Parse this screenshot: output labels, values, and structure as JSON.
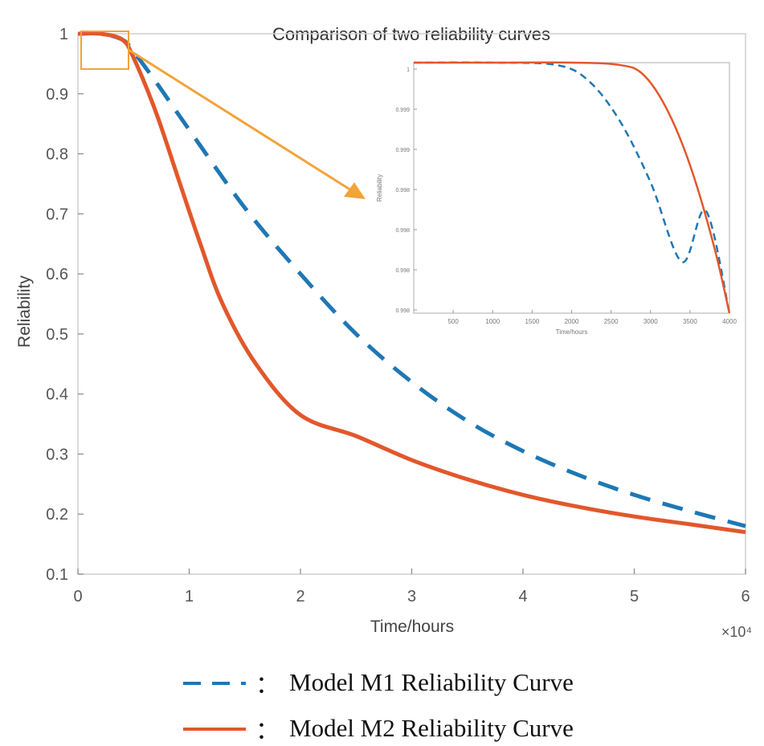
{
  "chart_data": [
    {
      "type": "line",
      "title": "Comparison of two reliability curves",
      "xlabel": "Time/hours",
      "ylabel": "Reliability",
      "xlim": [
        0,
        6
      ],
      "ylim": [
        0.1,
        1.0
      ],
      "x_multiplier": "×10⁴",
      "x_ticks": [
        "0",
        "1",
        "2",
        "3",
        "4",
        "5",
        "6"
      ],
      "y_ticks": [
        "0.1",
        "0.2",
        "0.3",
        "0.4",
        "0.5",
        "0.6",
        "0.7",
        "0.8",
        "0.9",
        "1"
      ],
      "grid": false,
      "series": [
        {
          "name": "Model M1 Reliability Curve",
          "style": "dashed",
          "color": "#1f77b4",
          "x": [
            0,
            0.2,
            0.4,
            0.5,
            0.7,
            1.0,
            1.5,
            2.0,
            2.5,
            3.0,
            3.5,
            4.0,
            4.5,
            5.0,
            5.5,
            6.0
          ],
          "y": [
            1.0,
            1.0,
            0.99,
            0.97,
            0.92,
            0.84,
            0.71,
            0.6,
            0.5,
            0.42,
            0.355,
            0.305,
            0.265,
            0.232,
            0.205,
            0.18
          ]
        },
        {
          "name": "Model M2 Reliability Curve",
          "style": "solid",
          "color": "#e2572b",
          "x": [
            0,
            0.2,
            0.4,
            0.5,
            0.7,
            0.9,
            1.1,
            1.3,
            1.6,
            2.0,
            2.5,
            3.0,
            3.5,
            4.0,
            4.5,
            5.0,
            5.5,
            6.0
          ],
          "y": [
            1.0,
            1.0,
            0.99,
            0.96,
            0.87,
            0.76,
            0.65,
            0.55,
            0.45,
            0.365,
            0.33,
            0.29,
            0.258,
            0.232,
            0.212,
            0.196,
            0.183,
            0.17
          ]
        }
      ]
    },
    {
      "type": "line",
      "xlabel": "Time/hours",
      "ylabel": "Reliability",
      "xlim": [
        0,
        4000
      ],
      "ylim": [
        0.9978,
        1.0
      ],
      "x_ticks": [
        "500",
        "1000",
        "1500",
        "2000",
        "2500",
        "3000",
        "3500",
        "4000"
      ],
      "y_ticks": [
        "1",
        "0.999",
        "0.999",
        "0.998",
        "0.998",
        "0.998",
        "0.998"
      ],
      "series": [
        {
          "style": "dashed",
          "color": "#1f77b4",
          "x": [
            0,
            1000,
            1800,
            2200,
            2600,
            3000,
            3400,
            3700,
            4000
          ],
          "y": [
            1.0,
            1.0,
            0.99998,
            0.99985,
            0.9995,
            0.99895,
            0.99825,
            0.9987,
            0.9978
          ]
        },
        {
          "style": "solid",
          "color": "#e2572b",
          "x": [
            0,
            1000,
            2000,
            2600,
            2900,
            3200,
            3500,
            3800,
            4000
          ],
          "y": [
            1.0,
            1.0,
            1.0,
            0.99998,
            0.9999,
            0.9996,
            0.9991,
            0.9984,
            0.9978
          ]
        }
      ]
    }
  ],
  "legend": {
    "items": [
      {
        "label": "Model M1 Reliability Curve",
        "separator": "：",
        "style": "dashed",
        "color": "#1f77b4"
      },
      {
        "label": "Model M2 Reliability Curve",
        "separator": "：",
        "style": "solid",
        "color": "#e2572b"
      }
    ]
  },
  "highlight_color": "#f2a33a"
}
